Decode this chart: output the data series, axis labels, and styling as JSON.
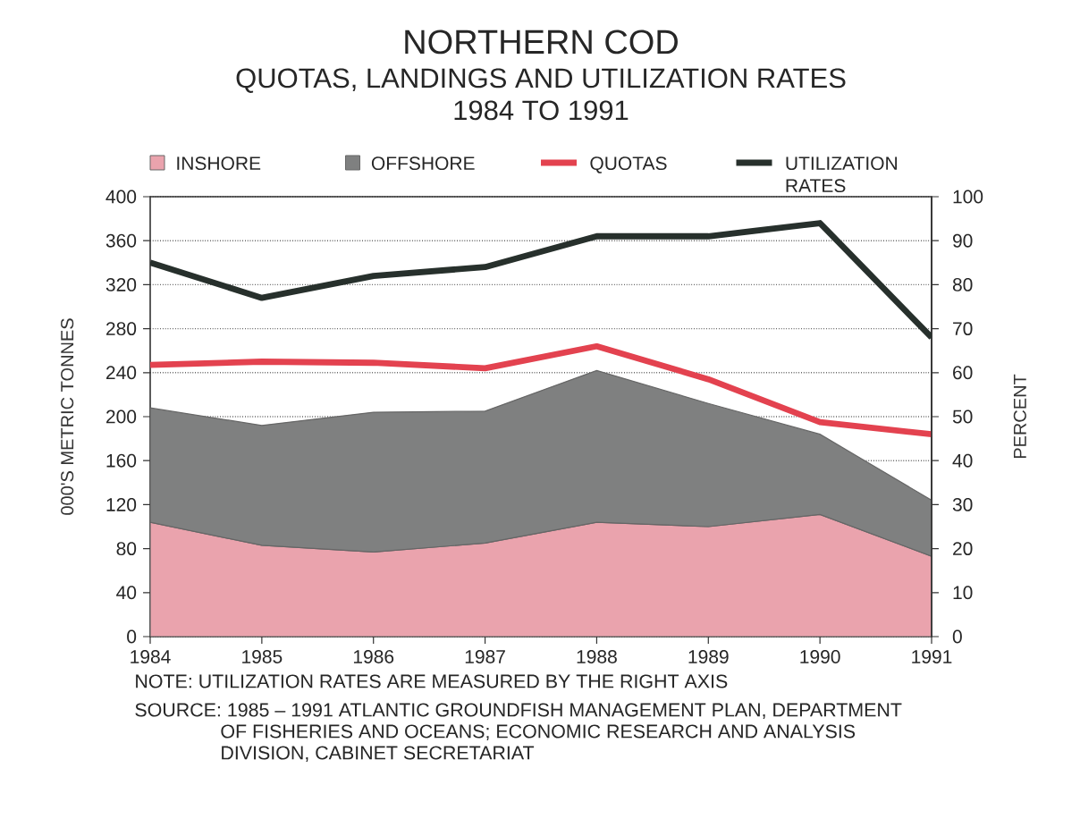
{
  "chart_data": {
    "type": "area",
    "title": "NORTHERN COD",
    "subtitle": "QUOTAS, LANDINGS AND UTILIZATION RATES 1984 TO 1991",
    "ylabel": "000'S METRIC TONNES",
    "y2label": "PERCENT",
    "x": [
      1984,
      1985,
      1986,
      1987,
      1988,
      1989,
      1990,
      1991
    ],
    "xlim": [
      1984,
      1991
    ],
    "xticks": [
      1984,
      1985,
      1986,
      1987,
      1988,
      1989,
      1990,
      1991
    ],
    "ylim": [
      0,
      400
    ],
    "yticks": [
      0,
      40,
      80,
      120,
      160,
      200,
      240,
      280,
      320,
      360,
      400
    ],
    "y2lim": [
      0,
      100
    ],
    "y2ticks": [
      0,
      10,
      20,
      30,
      40,
      50,
      60,
      70,
      80,
      90,
      100
    ],
    "stacked": true,
    "grid": "y",
    "legend": "top",
    "series": [
      {
        "name": "INSHORE",
        "color": "#eaa3ad",
        "values": [
          104,
          83,
          77,
          85,
          104,
          100,
          111,
          73
        ]
      },
      {
        "name": "OFFSHORE",
        "color": "#7f8080",
        "values": [
          104,
          109,
          127,
          120,
          138,
          112,
          73,
          51
        ]
      },
      {
        "name": "QUOTAS",
        "type": "line",
        "color": "#e3424f",
        "values": [
          247,
          250,
          249,
          244,
          264,
          234,
          195,
          184
        ]
      },
      {
        "name": "UTILIZATION RATES",
        "type": "line",
        "axis": "y2",
        "color": "#27302c",
        "values": [
          85,
          77,
          82,
          84,
          91,
          91,
          94,
          68
        ]
      }
    ],
    "annotations": [
      "NOTE: UTILIZATION RATES ARE MEASURED BY THE RIGHT AXIS",
      "SOURCE: 1985 – 1991 ATLANTIC GROUNDFISH MANAGEMENT PLAN, DEPARTMENT OF FISHERIES AND OCEANS; ECONOMIC RESEARCH AND ANALYSIS DIVISION, CABINET SECRETARIAT"
    ]
  }
}
